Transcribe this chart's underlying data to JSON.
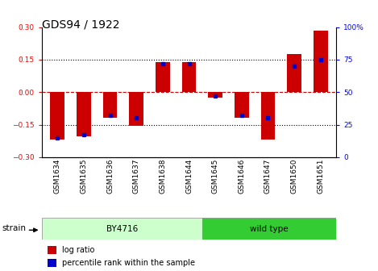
{
  "title": "GDS94 / 1922",
  "samples": [
    "GSM1634",
    "GSM1635",
    "GSM1636",
    "GSM1637",
    "GSM1638",
    "GSM1644",
    "GSM1645",
    "GSM1646",
    "GSM1647",
    "GSM1650",
    "GSM1651"
  ],
  "log_ratios": [
    -0.22,
    -0.205,
    -0.12,
    -0.155,
    0.14,
    0.14,
    -0.025,
    -0.12,
    -0.22,
    0.175,
    0.285
  ],
  "percentile_ranks": [
    15,
    17,
    32,
    30,
    72,
    72,
    47,
    32,
    30,
    70,
    75
  ],
  "ylim": [
    -0.3,
    0.3
  ],
  "yticks": [
    -0.3,
    -0.15,
    0,
    0.15,
    0.3
  ],
  "y2ticks": [
    0,
    25,
    50,
    75,
    100
  ],
  "bar_color": "#CC0000",
  "dot_color": "#0000CC",
  "zero_line_color": "#CC0000",
  "grid_color": "#000000",
  "by4716_n": 6,
  "wildtype_n": 5,
  "by4716_color": "#CCFFCC",
  "wildtype_color": "#33CC33",
  "strain_label": "strain",
  "by4716_label": "BY4716",
  "wildtype_label": "wild type",
  "legend_log_ratio": "log ratio",
  "legend_pct": "percentile rank within the sample",
  "bar_width": 0.55,
  "title_fontsize": 10,
  "tick_fontsize": 6.5,
  "label_fontsize": 7.5,
  "legend_fontsize": 7
}
